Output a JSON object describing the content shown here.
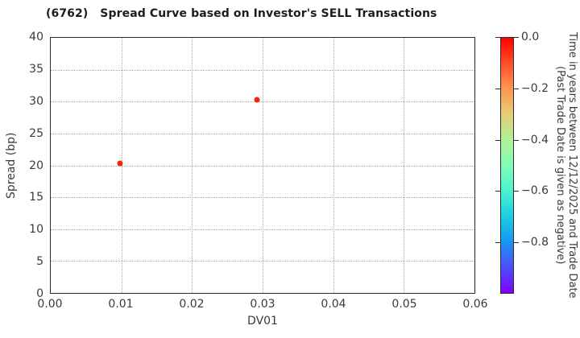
{
  "chart_data": {
    "type": "scatter",
    "title": "(6762)   Spread Curve based on Investor's SELL Transactions",
    "xlabel": "DV01",
    "ylabel": "Spread (bp)",
    "xlim": [
      0.0,
      0.06
    ],
    "ylim": [
      0,
      40
    ],
    "grid": true,
    "xticks": [
      {
        "value": 0.0,
        "label": "0.00"
      },
      {
        "value": 0.01,
        "label": "0.01"
      },
      {
        "value": 0.02,
        "label": "0.02"
      },
      {
        "value": 0.03,
        "label": "0.03"
      },
      {
        "value": 0.04,
        "label": "0.04"
      },
      {
        "value": 0.05,
        "label": "0.05"
      },
      {
        "value": 0.06,
        "label": "0.06"
      }
    ],
    "yticks": [
      {
        "value": 0,
        "label": "0"
      },
      {
        "value": 5,
        "label": "5"
      },
      {
        "value": 10,
        "label": "10"
      },
      {
        "value": 15,
        "label": "15"
      },
      {
        "value": 20,
        "label": "20"
      },
      {
        "value": 25,
        "label": "25"
      },
      {
        "value": 30,
        "label": "30"
      },
      {
        "value": 35,
        "label": "35"
      },
      {
        "value": 40,
        "label": "40"
      }
    ],
    "points": [
      {
        "x": 0.0098,
        "y": 20.5,
        "color": "#f5230d"
      },
      {
        "x": 0.0291,
        "y": 30.4,
        "color": "#f5230d"
      }
    ],
    "colorbar": {
      "label_lines": [
        "Time in years between 12/12/2025 and Trade Date",
        "(Past Trade Date is given as negative)"
      ],
      "range_top": 0.0,
      "range_bottom": -1.0,
      "ticks": [
        {
          "value": 0.0,
          "label": "0.0"
        },
        {
          "value": -0.2,
          "label": "−0.2"
        },
        {
          "value": -0.4,
          "label": "−0.4"
        },
        {
          "value": -0.6,
          "label": "−0.6"
        },
        {
          "value": -0.8,
          "label": "−0.8"
        }
      ],
      "gradient_stops": [
        {
          "pos": 0,
          "color": "#ff0000"
        },
        {
          "pos": 10,
          "color": "#ff4f28"
        },
        {
          "pos": 20,
          "color": "#ff964f"
        },
        {
          "pos": 30,
          "color": "#e5ce74"
        },
        {
          "pos": 40,
          "color": "#b2f296"
        },
        {
          "pos": 50,
          "color": "#80ffb4"
        },
        {
          "pos": 60,
          "color": "#4cf2ce"
        },
        {
          "pos": 70,
          "color": "#19cee3"
        },
        {
          "pos": 80,
          "color": "#1996f2"
        },
        {
          "pos": 90,
          "color": "#4c4ffc"
        },
        {
          "pos": 100,
          "color": "#8000ff"
        }
      ]
    },
    "colors": {
      "marker": "#f5230d",
      "grid": "#ababab",
      "axis": "#2b2b2b",
      "text": "#3a3a3a",
      "title_text": "#1d1d1d",
      "background": "#ffffff"
    }
  }
}
